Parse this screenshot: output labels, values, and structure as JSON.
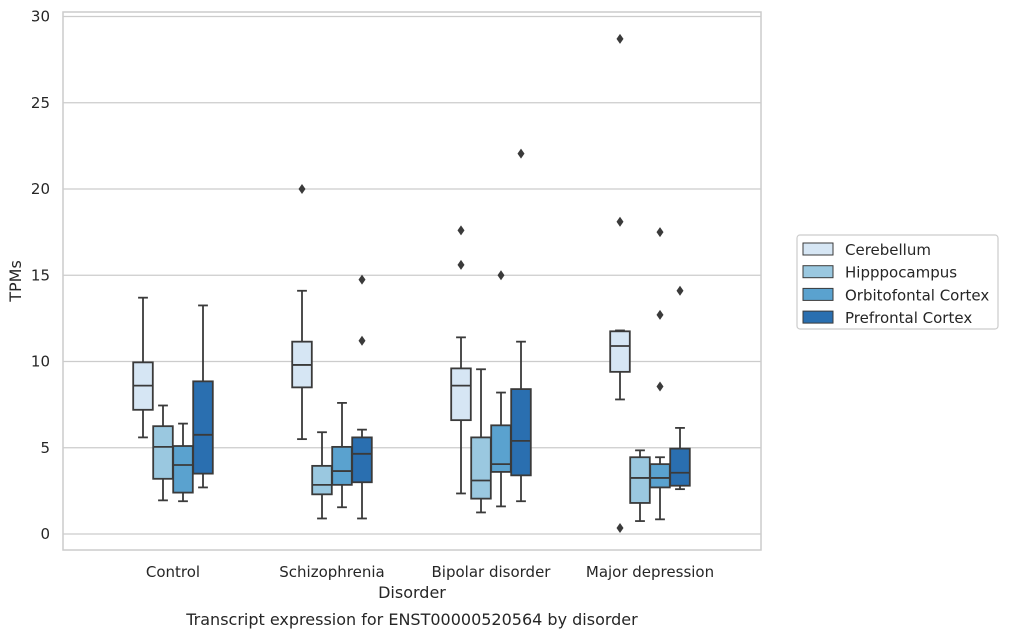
{
  "chart_data": {
    "type": "box",
    "caption": "Transcript expression for ENST00000520564 by disorder",
    "xlabel": "Disorder",
    "ylabel": "TPMs",
    "ylim": [
      -1,
      30.2
    ],
    "yticks": [
      0,
      5,
      10,
      15,
      20,
      25,
      30
    ],
    "grid": "horizontal",
    "legend_position": "right",
    "categories": [
      "Control",
      "Schizophrenia",
      "Bipolar disorder",
      "Major depression"
    ],
    "series": [
      {
        "name": "Cerebellum",
        "color": "#d6e6f4",
        "boxes": [
          {
            "whislo": 5.6,
            "q1": 7.2,
            "med": 8.6,
            "q3": 9.95,
            "whishi": 13.7,
            "fliers": []
          },
          {
            "whislo": 5.5,
            "q1": 8.5,
            "med": 9.8,
            "q3": 11.15,
            "whishi": 14.1,
            "fliers": [
              20.0
            ]
          },
          {
            "whislo": 2.35,
            "q1": 6.6,
            "med": 8.6,
            "q3": 9.6,
            "whishi": 11.4,
            "fliers": [
              15.6,
              17.6
            ]
          },
          {
            "whislo": 7.8,
            "q1": 9.4,
            "med": 10.9,
            "q3": 11.75,
            "whishi": 11.8,
            "fliers": [
              0.35,
              18.1,
              28.7
            ]
          }
        ]
      },
      {
        "name": "Hipppocampus",
        "color": "#9ac8e0",
        "boxes": [
          {
            "whislo": 1.95,
            "q1": 3.2,
            "med": 5.05,
            "q3": 6.25,
            "whishi": 7.45,
            "fliers": []
          },
          {
            "whislo": 0.9,
            "q1": 2.3,
            "med": 2.85,
            "q3": 3.95,
            "whishi": 5.9,
            "fliers": []
          },
          {
            "whislo": 1.25,
            "q1": 2.05,
            "med": 3.1,
            "q3": 5.6,
            "whishi": 9.55,
            "fliers": []
          },
          {
            "whislo": 0.75,
            "q1": 1.8,
            "med": 3.25,
            "q3": 4.45,
            "whishi": 4.85,
            "fliers": []
          }
        ]
      },
      {
        "name": "Orbitofontal Cortex",
        "color": "#5aa2cf",
        "boxes": [
          {
            "whislo": 1.9,
            "q1": 2.4,
            "med": 4.0,
            "q3": 5.1,
            "whishi": 6.4,
            "fliers": []
          },
          {
            "whislo": 1.55,
            "q1": 2.85,
            "med": 3.65,
            "q3": 5.05,
            "whishi": 7.6,
            "fliers": []
          },
          {
            "whislo": 1.6,
            "q1": 3.6,
            "med": 4.05,
            "q3": 6.3,
            "whishi": 8.2,
            "fliers": [
              15.0
            ]
          },
          {
            "whislo": 0.85,
            "q1": 2.7,
            "med": 3.25,
            "q3": 4.05,
            "whishi": 4.45,
            "fliers": [
              8.55,
              12.7,
              17.5
            ]
          }
        ]
      },
      {
        "name": "Prefrontal Cortex",
        "color": "#2a6fb0",
        "boxes": [
          {
            "whislo": 2.7,
            "q1": 3.5,
            "med": 5.75,
            "q3": 8.85,
            "whishi": 13.25,
            "fliers": []
          },
          {
            "whislo": 0.9,
            "q1": 3.0,
            "med": 4.65,
            "q3": 5.6,
            "whishi": 6.05,
            "fliers": [
              11.2,
              14.75
            ]
          },
          {
            "whislo": 1.9,
            "q1": 3.4,
            "med": 5.4,
            "q3": 8.4,
            "whishi": 11.15,
            "fliers": [
              22.05
            ]
          },
          {
            "whislo": 2.6,
            "q1": 2.8,
            "med": 3.55,
            "q3": 4.95,
            "whishi": 6.15,
            "fliers": [
              14.1
            ]
          }
        ]
      }
    ]
  }
}
